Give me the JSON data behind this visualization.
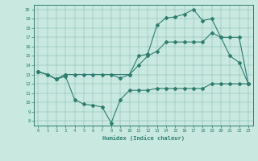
{
  "line1_x": [
    0,
    1,
    2,
    3,
    4,
    5,
    6,
    7,
    8,
    9,
    10,
    11,
    12,
    13,
    14,
    15,
    16,
    17,
    18,
    19,
    20,
    21,
    22,
    23
  ],
  "line1_y": [
    13.3,
    13.0,
    12.5,
    13.0,
    13.0,
    13.0,
    13.0,
    13.0,
    13.0,
    12.6,
    13.0,
    15.0,
    15.2,
    18.3,
    19.1,
    19.2,
    19.5,
    20.0,
    18.8,
    19.0,
    17.0,
    15.0,
    14.3,
    12.0
  ],
  "line2_x": [
    0,
    1,
    2,
    3,
    10,
    11,
    12,
    13,
    14,
    15,
    16,
    17,
    18,
    19,
    20,
    21,
    22,
    23
  ],
  "line2_y": [
    13.3,
    13.0,
    12.5,
    13.0,
    13.0,
    14.0,
    15.0,
    15.5,
    16.5,
    16.5,
    16.5,
    16.5,
    16.5,
    17.5,
    17.0,
    17.0,
    17.0,
    12.0
  ],
  "line3_x": [
    0,
    1,
    2,
    3,
    4,
    5,
    6,
    7,
    8,
    9,
    10,
    11,
    12,
    13,
    14,
    15,
    16,
    17,
    18,
    19,
    20,
    21,
    22,
    23
  ],
  "line3_y": [
    13.3,
    13.0,
    12.5,
    12.8,
    10.3,
    9.8,
    9.7,
    9.5,
    7.8,
    10.3,
    11.3,
    11.3,
    11.3,
    11.5,
    11.5,
    11.5,
    11.5,
    11.5,
    11.5,
    12.0,
    12.0,
    12.0,
    12.0,
    12.0
  ],
  "color": "#2e7d6e",
  "bg_color": "#c8e8e0",
  "xlabel": "Humidex (Indice chaleur)",
  "ylim": [
    7.5,
    20.5
  ],
  "xlim": [
    -0.5,
    23.5
  ],
  "yticks": [
    8,
    9,
    10,
    11,
    12,
    13,
    14,
    15,
    16,
    17,
    18,
    19,
    20
  ],
  "xticks": [
    0,
    1,
    2,
    3,
    4,
    5,
    6,
    7,
    8,
    9,
    10,
    11,
    12,
    13,
    14,
    15,
    16,
    17,
    18,
    19,
    20,
    21,
    22,
    23
  ]
}
